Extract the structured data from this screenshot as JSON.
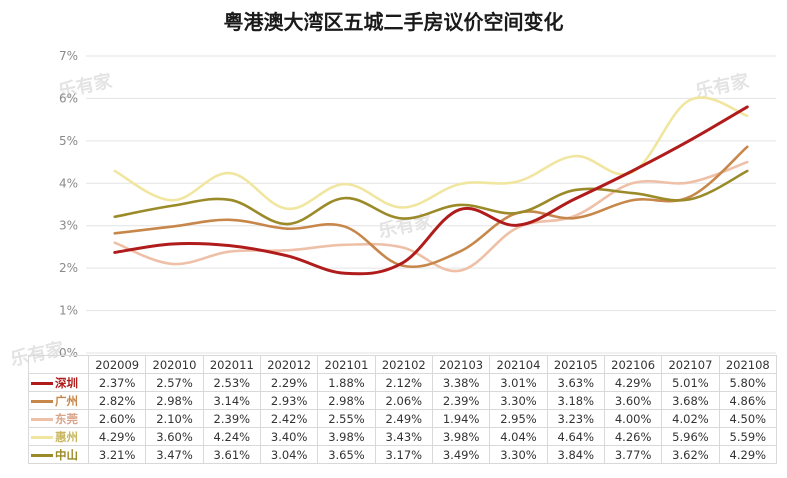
{
  "title": "粤港澳大湾区五城二手房议价空间变化",
  "watermark": "乐有家",
  "chart_data": {
    "type": "line",
    "title": "粤港澳大湾区五城二手房议价空间变化",
    "xlabel": "",
    "ylabel": "",
    "ylim": [
      0,
      7
    ],
    "y_ticks": [
      "0%",
      "1%",
      "2%",
      "3%",
      "4%",
      "5%",
      "6%",
      "7%"
    ],
    "grid": true,
    "legend": "table-left",
    "categories": [
      "202009",
      "202010",
      "202011",
      "202012",
      "202101",
      "202102",
      "202103",
      "202104",
      "202105",
      "202106",
      "202107",
      "202108"
    ],
    "series": [
      {
        "name": "深圳",
        "color": "#b01c1c",
        "values": [
          2.37,
          2.57,
          2.53,
          2.29,
          1.88,
          2.12,
          3.38,
          3.01,
          3.63,
          4.29,
          5.01,
          5.8
        ],
        "labels": [
          "2.37%",
          "2.57%",
          "2.53%",
          "2.29%",
          "1.88%",
          "2.12%",
          "3.38%",
          "3.01%",
          "3.63%",
          "4.29%",
          "5.01%",
          "5.80%"
        ]
      },
      {
        "name": "广州",
        "color": "#c8874a",
        "values": [
          2.82,
          2.98,
          3.14,
          2.93,
          2.98,
          2.06,
          2.39,
          3.3,
          3.18,
          3.6,
          3.68,
          4.86
        ],
        "labels": [
          "2.82%",
          "2.98%",
          "3.14%",
          "2.93%",
          "2.98%",
          "2.06%",
          "2.39%",
          "3.30%",
          "3.18%",
          "3.60%",
          "3.68%",
          "4.86%"
        ]
      },
      {
        "name": "东莞",
        "color": "#eec0a8",
        "values": [
          2.6,
          2.1,
          2.39,
          2.42,
          2.55,
          2.49,
          1.94,
          2.95,
          3.23,
          4.0,
          4.02,
          4.5
        ],
        "labels": [
          "2.60%",
          "2.10%",
          "2.39%",
          "2.42%",
          "2.55%",
          "2.49%",
          "1.94%",
          "2.95%",
          "3.23%",
          "4.00%",
          "4.02%",
          "4.50%"
        ]
      },
      {
        "name": "惠州",
        "color": "#f1e6a0",
        "values": [
          4.29,
          3.6,
          4.24,
          3.4,
          3.98,
          3.43,
          3.98,
          4.04,
          4.64,
          4.26,
          5.96,
          5.59
        ],
        "labels": [
          "4.29%",
          "3.60%",
          "4.24%",
          "3.40%",
          "3.98%",
          "3.43%",
          "3.98%",
          "4.04%",
          "4.64%",
          "4.26%",
          "5.96%",
          "5.59%"
        ]
      },
      {
        "name": "中山",
        "color": "#9b8a28",
        "values": [
          3.21,
          3.47,
          3.61,
          3.04,
          3.65,
          3.17,
          3.49,
          3.3,
          3.84,
          3.77,
          3.62,
          4.29
        ],
        "labels": [
          "3.21%",
          "3.47%",
          "3.61%",
          "3.04%",
          "3.65%",
          "3.17%",
          "3.49%",
          "3.30%",
          "3.84%",
          "3.77%",
          "3.62%",
          "4.29%"
        ]
      }
    ]
  }
}
